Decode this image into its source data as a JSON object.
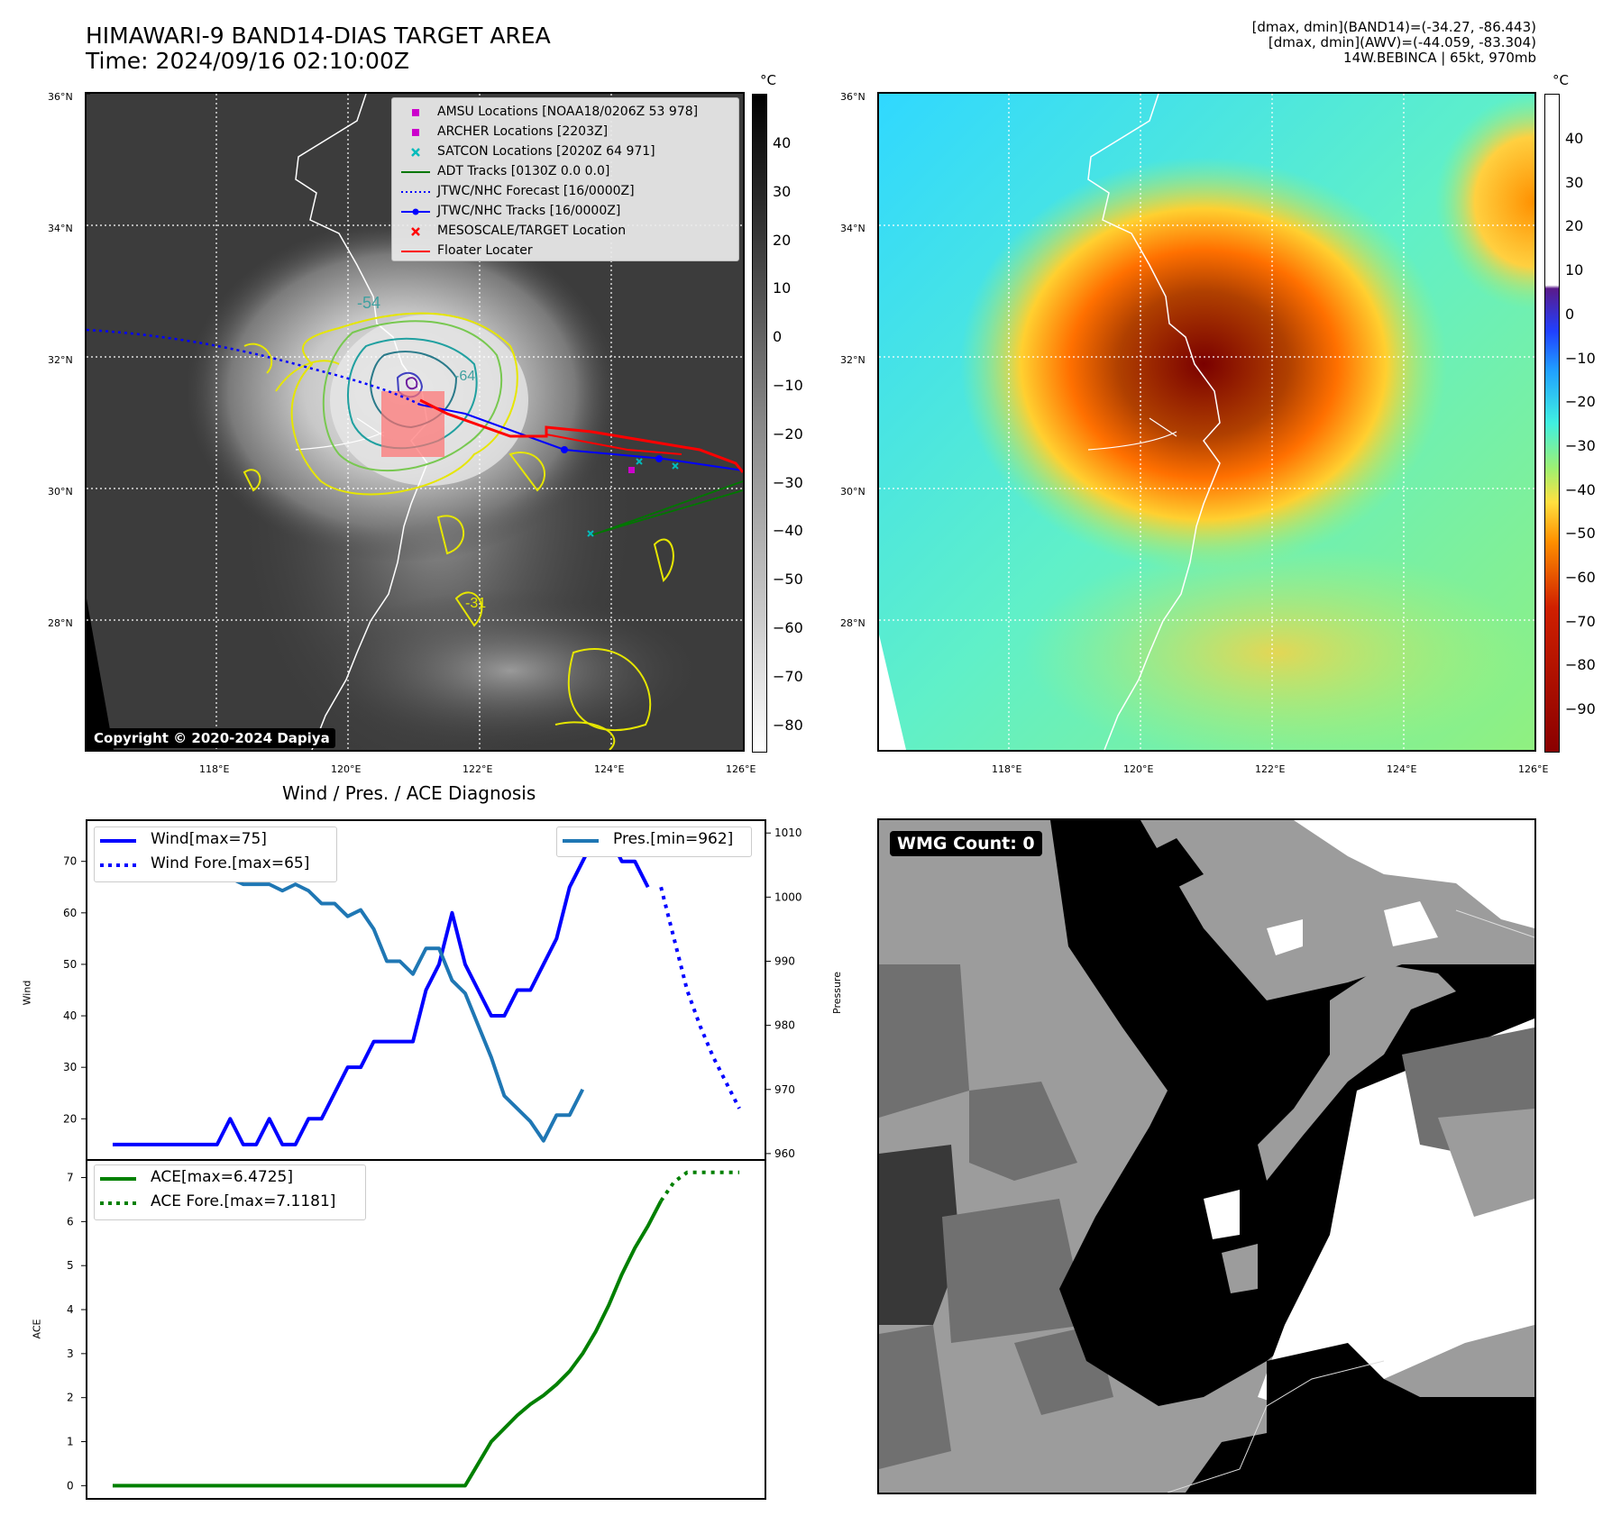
{
  "header": {
    "title_line1": "HIMAWARI-9 BAND14-DIAS TARGET AREA",
    "title_line2": "Time: 2024/09/16 02:10:00Z",
    "info_line1": "[dmax, dmin](BAND14)=(-34.27, -86.443)",
    "info_line2": "[dmax, dmin](AWV)=(-44.059, -83.304)",
    "info_line3": "14W.BEBINCA | 65kt, 970mb"
  },
  "map": {
    "lat_labels": [
      "36°N",
      "34°N",
      "32°N",
      "30°N",
      "28°N"
    ],
    "lon_labels": [
      "118°E",
      "120°E",
      "122°E",
      "124°E",
      "126°E"
    ],
    "copyright": "Copyright © 2020-2024 Dapiya",
    "contour_labels": [
      "-54",
      "-64",
      "-31"
    ],
    "colors": {
      "forecast": "#0000ff",
      "track": "#0000ff",
      "floater": "#ff0000",
      "adt": "#007700",
      "satcon": "#00bbbb",
      "amsu": "#cc00cc"
    }
  },
  "legend": {
    "items": [
      {
        "label": "AMSU Locations [NOAA18/0206Z 53 978]",
        "icon": "square-marker",
        "color": "#cc00cc"
      },
      {
        "label": "ARCHER Locations [2203Z]",
        "icon": "square-marker",
        "color": "#cc00cc"
      },
      {
        "label": "SATCON Locations [2020Z 64 971]",
        "icon": "x-marker",
        "color": "#00bbbb"
      },
      {
        "label": "ADT Tracks [0130Z 0.0 0.0]",
        "icon": "solid-line",
        "color": "#007700"
      },
      {
        "label": "JTWC/NHC Forecast [16/0000Z]",
        "icon": "dotted-line",
        "color": "#0000ff"
      },
      {
        "label": "JTWC/NHC Tracks [16/0000Z]",
        "icon": "line-dot",
        "color": "#0000ff"
      },
      {
        "label": "MESOSCALE/TARGET Location",
        "icon": "x-marker",
        "color": "#ff0000"
      },
      {
        "label": "Floater Locater",
        "icon": "solid-line",
        "color": "#ff0000"
      }
    ]
  },
  "colorbar_gray": {
    "unit": "°C",
    "ticks": [
      "40",
      "30",
      "20",
      "10",
      "0",
      "−10",
      "−20",
      "−30",
      "−40",
      "−50",
      "−60",
      "−70",
      "−80"
    ]
  },
  "colorbar_awv": {
    "unit": "°C",
    "ticks": [
      "40",
      "30",
      "20",
      "10",
      "0",
      "−10",
      "−20",
      "−30",
      "−40",
      "−50",
      "−60",
      "−70",
      "−80",
      "−90"
    ]
  },
  "wmg": {
    "badge": "WMG Count: 0"
  },
  "chart_data": [
    {
      "type": "line",
      "title": "Wind / Pres. / ACE Diagnosis",
      "ylabel": "Wind",
      "ylabel_right": "Pressure",
      "ylim": [
        12,
        78
      ],
      "ylim_right": [
        959,
        1012
      ],
      "yticks": [
        20,
        30,
        40,
        50,
        60,
        70
      ],
      "yticks_right": [
        960,
        970,
        980,
        990,
        1000,
        1010
      ],
      "series": [
        {
          "name": "Wind[max=75]",
          "color": "#0000ff",
          "style": "solid",
          "x": [
            0,
            1,
            2,
            3,
            4,
            5,
            6,
            7,
            8,
            9,
            10,
            11,
            12,
            13,
            14,
            15,
            16,
            17,
            18,
            19,
            20,
            21,
            22,
            23,
            24,
            25,
            26,
            27,
            28,
            29,
            30,
            31,
            32,
            33,
            34,
            35,
            36,
            37,
            38,
            39,
            40,
            41,
            42
          ],
          "values": [
            15,
            15,
            15,
            15,
            15,
            15,
            15,
            15,
            15,
            20,
            15,
            15,
            20,
            15,
            15,
            20,
            20,
            25,
            30,
            30,
            35,
            35,
            35,
            35,
            45,
            50,
            60,
            50,
            45,
            40,
            40,
            45,
            45,
            50,
            55,
            65,
            70,
            75,
            75,
            70,
            70,
            65,
            null
          ]
        },
        {
          "name": "Wind Fore.[max=65]",
          "color": "#0000ff",
          "style": "dotted",
          "x": [
            42,
            43,
            44,
            45,
            46,
            47,
            48
          ],
          "values": [
            65,
            55,
            45,
            38,
            32,
            27,
            22
          ]
        },
        {
          "name": "Pres.[min=962]",
          "color": "#1f77b4",
          "style": "solid",
          "x": [
            0,
            1,
            2,
            3,
            4,
            5,
            6,
            7,
            8,
            9,
            10,
            11,
            12,
            13,
            14,
            15,
            16,
            17,
            18,
            19,
            20,
            21,
            22,
            23,
            24,
            25,
            26,
            27,
            28,
            29,
            30,
            31,
            32,
            33,
            34,
            35,
            36,
            37,
            38,
            39,
            40,
            41,
            42
          ],
          "values": [
            1010,
            1008,
            1008,
            1008,
            1009,
            1006,
            1006,
            1005,
            1003,
            1003,
            1002,
            1002,
            1002,
            1001,
            1002,
            1001,
            999,
            999,
            997,
            998,
            995,
            990,
            990,
            988,
            992,
            992,
            987,
            985,
            980,
            975,
            969,
            967,
            965,
            962,
            966,
            966,
            970,
            null,
            null,
            null,
            null,
            null,
            null
          ]
        },
        {
          "name": "ACE[max=6.4725]",
          "color": "#008000",
          "style": "solid",
          "x": [
            0,
            5,
            10,
            15,
            20,
            25,
            27,
            28,
            29,
            30,
            31,
            32,
            33,
            34,
            35,
            36,
            37,
            38,
            39,
            40,
            41,
            42,
            43,
            44,
            45,
            46,
            47,
            48
          ],
          "values": [
            0,
            0,
            0,
            0,
            0,
            0,
            0,
            0.5,
            1.0,
            1.3,
            1.6,
            1.85,
            2.05,
            2.3,
            2.6,
            3.0,
            3.5,
            4.1,
            4.8,
            5.4,
            5.9,
            6.47,
            null,
            null,
            null,
            null,
            null,
            null
          ]
        },
        {
          "name": "ACE Fore.[max=7.1181]",
          "color": "#008000",
          "style": "dotted",
          "x": [
            42,
            43,
            44,
            45,
            46,
            47,
            48
          ],
          "values": [
            6.47,
            6.9,
            7.1181,
            7.1181,
            7.1181,
            7.1181,
            7.1181
          ]
        }
      ],
      "ace_ylim": [
        -0.3,
        7.4
      ],
      "ace_yticks": [
        0,
        1,
        2,
        3,
        4,
        5,
        6,
        7
      ],
      "ace_ylabel": "ACE"
    }
  ]
}
